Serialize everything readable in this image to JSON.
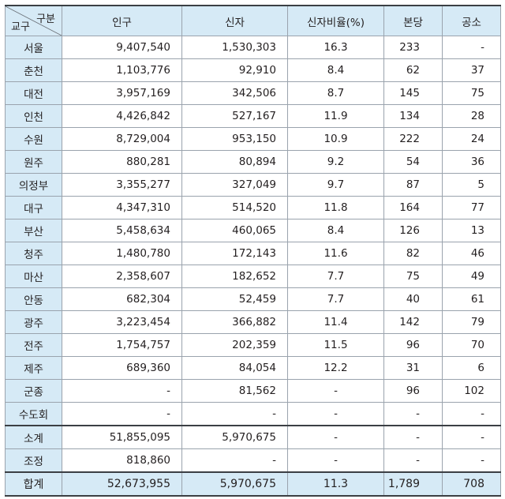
{
  "header": {
    "corner_top": "구분",
    "corner_bottom": "교구",
    "columns": [
      "인구",
      "신자",
      "신자비율(%)",
      "본당",
      "공소"
    ]
  },
  "rows": [
    {
      "label": "서울",
      "population": "9,407,540",
      "believers": "1,530,303",
      "ratio": "16.3",
      "parishes": "233",
      "missions": "-"
    },
    {
      "label": "춘천",
      "population": "1,103,776",
      "believers": "92,910",
      "ratio": "8.4",
      "parishes": "62",
      "missions": "37"
    },
    {
      "label": "대전",
      "population": "3,957,169",
      "believers": "342,506",
      "ratio": "8.7",
      "parishes": "145",
      "missions": "75"
    },
    {
      "label": "인천",
      "population": "4,426,842",
      "believers": "527,167",
      "ratio": "11.9",
      "parishes": "134",
      "missions": "28"
    },
    {
      "label": "수원",
      "population": "8,729,004",
      "believers": "953,150",
      "ratio": "10.9",
      "parishes": "222",
      "missions": "24"
    },
    {
      "label": "원주",
      "population": "880,281",
      "believers": "80,894",
      "ratio": "9.2",
      "parishes": "54",
      "missions": "36"
    },
    {
      "label": "의정부",
      "population": "3,355,277",
      "believers": "327,049",
      "ratio": "9.7",
      "parishes": "87",
      "missions": "5"
    },
    {
      "label": "대구",
      "population": "4,347,310",
      "believers": "514,520",
      "ratio": "11.8",
      "parishes": "164",
      "missions": "77"
    },
    {
      "label": "부산",
      "population": "5,458,634",
      "believers": "460,065",
      "ratio": "8.4",
      "parishes": "126",
      "missions": "13"
    },
    {
      "label": "청주",
      "population": "1,480,780",
      "believers": "172,143",
      "ratio": "11.6",
      "parishes": "82",
      "missions": "46"
    },
    {
      "label": "마산",
      "population": "2,358,607",
      "believers": "182,652",
      "ratio": "7.7",
      "parishes": "75",
      "missions": "49"
    },
    {
      "label": "안동",
      "population": "682,304",
      "believers": "52,459",
      "ratio": "7.7",
      "parishes": "40",
      "missions": "61"
    },
    {
      "label": "광주",
      "population": "3,223,454",
      "believers": "366,882",
      "ratio": "11.4",
      "parishes": "142",
      "missions": "79"
    },
    {
      "label": "전주",
      "population": "1,754,757",
      "believers": "202,359",
      "ratio": "11.5",
      "parishes": "96",
      "missions": "70"
    },
    {
      "label": "제주",
      "population": "689,360",
      "believers": "84,054",
      "ratio": "12.2",
      "parishes": "31",
      "missions": "6"
    },
    {
      "label": "군종",
      "population": "-",
      "believers": "81,562",
      "ratio": "-",
      "parishes": "96",
      "missions": "102"
    },
    {
      "label": "수도회",
      "population": "-",
      "believers": "-",
      "ratio": "-",
      "parishes": "-",
      "missions": "-"
    }
  ],
  "subtotal": {
    "label": "소계",
    "population": "51,855,095",
    "believers": "5,970,675",
    "ratio": "-",
    "parishes": "-",
    "missions": "-"
  },
  "adjustment": {
    "label": "조정",
    "population": "818,860",
    "believers": "-",
    "ratio": "-",
    "parishes": "-",
    "missions": "-"
  },
  "total": {
    "label": "합계",
    "population": "52,673,955",
    "believers": "5,970,675",
    "ratio": "11.3",
    "parishes": "1,789",
    "missions": "708"
  }
}
